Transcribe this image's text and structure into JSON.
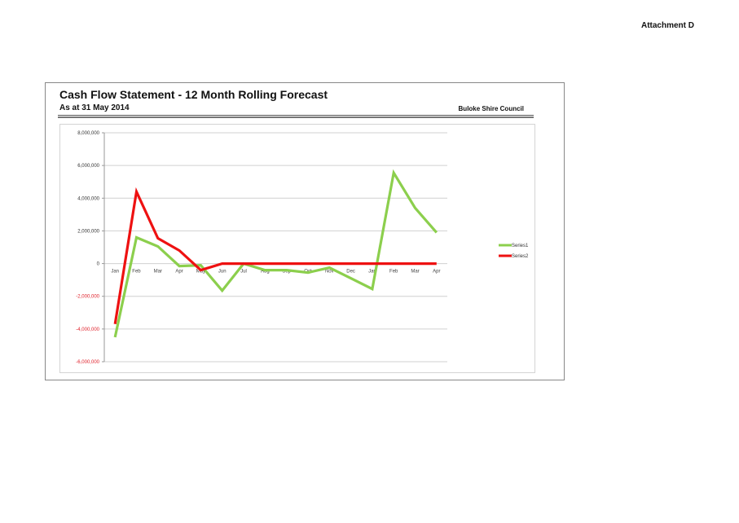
{
  "header": {
    "attachment": "Attachment D"
  },
  "report": {
    "title": "Cash Flow Statement - 12 Month Rolling Forecast",
    "subtitle": "As at 31 May 2014",
    "organization": "Buloke Shire Council"
  },
  "chart_data": {
    "type": "line",
    "title": "",
    "xlabel": "",
    "ylabel": "",
    "categories": [
      "Jan",
      "Feb",
      "Mar",
      "Apr",
      "May",
      "Jun",
      "Jul",
      "Aug",
      "Sep",
      "Oct",
      "Nov",
      "Dec",
      "Jan",
      "Feb",
      "Mar",
      "Apr"
    ],
    "yticks": [
      8000000,
      6000000,
      4000000,
      2000000,
      0,
      -2000000,
      -4000000,
      -6000000
    ],
    "ytick_labels": [
      "8,000,000",
      "6,000,000",
      "4,000,000",
      "2,000,000",
      "0",
      "-2,000,000",
      "-4,000,000",
      "-6,000,000"
    ],
    "ylim": [
      -6000000,
      8000000
    ],
    "grid": true,
    "legend_position": "right",
    "negative_tick_color": "#e0202a",
    "series": [
      {
        "name": "Series1",
        "color": "#8ccf4d",
        "values": [
          -4500000,
          1600000,
          1050000,
          -150000,
          -100000,
          -1650000,
          0,
          -400000,
          -400000,
          -550000,
          -250000,
          -900000,
          -1550000,
          5550000,
          3400000,
          1900000
        ]
      },
      {
        "name": "Series2",
        "color": "#ee1111",
        "values": [
          -3700000,
          4400000,
          1550000,
          800000,
          -400000,
          0,
          0,
          0,
          0,
          0,
          0,
          0,
          0,
          0,
          0,
          0
        ]
      }
    ]
  }
}
